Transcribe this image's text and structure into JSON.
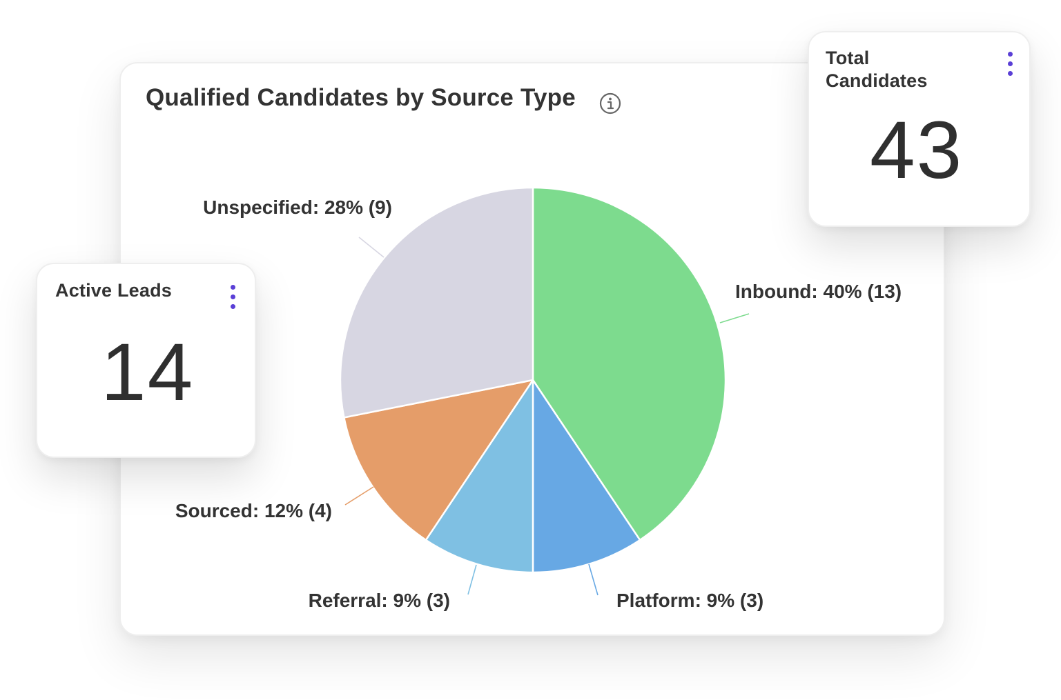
{
  "colors": {
    "accent": "#5a3fd6",
    "inbound": "#7ddb8e",
    "platform": "#67a8e4",
    "referral": "#7fc0e3",
    "sourced": "#e59d69",
    "unspecified": "#d7d6e2"
  },
  "chart_data": {
    "type": "pie",
    "title": "Qualified Candidates by Source Type",
    "start_angle_deg": 0,
    "direction": "clockwise",
    "slices": [
      {
        "name": "Inbound",
        "value": 13,
        "percent": 40,
        "label": "Inbound: 40% (13)",
        "color": "#7ddb8e"
      },
      {
        "name": "Platform",
        "value": 3,
        "percent": 9,
        "label": "Platform: 9% (3)",
        "color": "#67a8e4"
      },
      {
        "name": "Referral",
        "value": 3,
        "percent": 9,
        "label": "Referral: 9% (3)",
        "color": "#7fc0e3"
      },
      {
        "name": "Sourced",
        "value": 4,
        "percent": 12,
        "label": "Sourced: 12% (4)",
        "color": "#e59d69"
      },
      {
        "name": "Unspecified",
        "value": 9,
        "percent": 28,
        "label": "Unspecified: 28% (9)",
        "color": "#d7d6e2"
      }
    ]
  },
  "active_leads": {
    "label": "Active Leads",
    "value": "14",
    "menu_icon": "kebab-menu-icon"
  },
  "total_candidates": {
    "label": "Total Candidates",
    "value": "43",
    "menu_icon": "kebab-menu-icon"
  },
  "info_icon": "info-icon"
}
